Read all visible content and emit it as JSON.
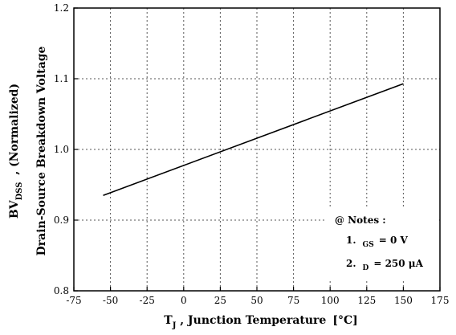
{
  "chart_data": {
    "type": "line",
    "xlabel": {
      "prefix": "T",
      "subscript": "J",
      "text": " , Junction Temperature",
      "unit": "[°C]"
    },
    "ylabel": {
      "prefix": "BV",
      "subscript": "DSS",
      "text": " , (Normalized)",
      "line2": "Drain-Source Breakdown Voltage"
    },
    "xlim": [
      -75,
      175
    ],
    "ylim": [
      0.8,
      1.2
    ],
    "x_ticks": [
      -75,
      -50,
      -25,
      0,
      25,
      50,
      75,
      100,
      125,
      150,
      175
    ],
    "x_tick_labels": [
      "-75",
      "-50",
      "-25",
      "0",
      "25",
      "50",
      "75",
      "100",
      "125",
      "150",
      "175"
    ],
    "y_ticks": [
      0.8,
      0.9,
      1.0,
      1.1,
      1.2
    ],
    "y_tick_labels": [
      "0.8",
      "0.9",
      "1.0",
      "1.1",
      "1.2"
    ],
    "grid": true,
    "series": [
      {
        "x": [
          -55,
          150
        ],
        "y": [
          0.935,
          1.093
        ]
      }
    ],
    "notes": {
      "title": "@ Notes :",
      "items": [
        {
          "num": "1.",
          "subscript": "GS",
          "text": "= 0 V"
        },
        {
          "num": "2.",
          "subscript": "D",
          "text": "= 250 μA"
        }
      ]
    }
  }
}
